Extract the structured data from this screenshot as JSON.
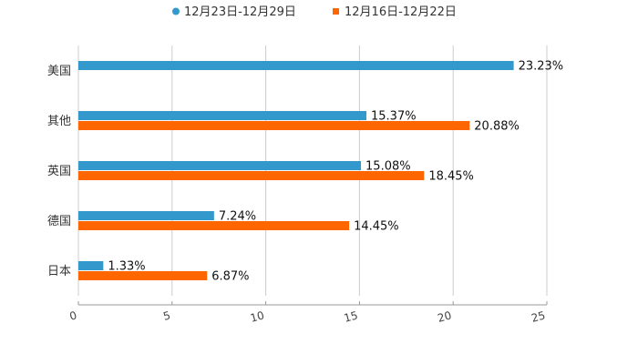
{
  "chart_data": {
    "type": "bar",
    "orientation": "horizontal",
    "categories": [
      "美国",
      "其他",
      "英国",
      "德国",
      "日本"
    ],
    "series": [
      {
        "name": "12月23日-12月29日",
        "color": "#3399cc",
        "values": [
          23.23,
          15.37,
          15.08,
          7.24,
          1.33
        ],
        "labels": [
          "23.23%",
          "15.37%",
          "15.08%",
          "7.24%",
          "1.33%"
        ]
      },
      {
        "name": "12月16日-12月22日",
        "color": "#ff6600",
        "values": [
          null,
          20.88,
          18.45,
          14.45,
          6.87
        ],
        "labels": [
          null,
          "20.88%",
          "18.45%",
          "14.45%",
          "6.87%"
        ]
      }
    ],
    "xlim": [
      0,
      25
    ],
    "xticks": [
      "0",
      "5",
      "10",
      "15",
      "20",
      "25"
    ],
    "grid": true,
    "legend_position": "top-center",
    "title": "",
    "xlabel": "",
    "ylabel": ""
  }
}
